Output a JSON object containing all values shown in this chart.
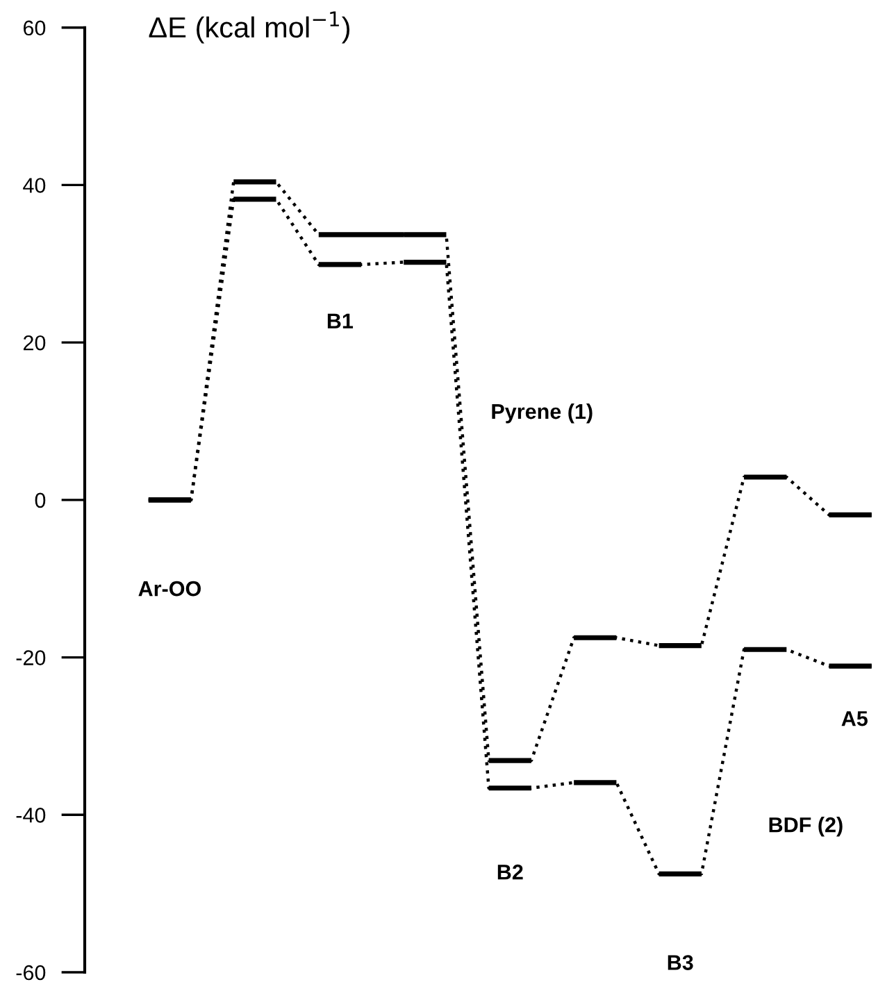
{
  "chart_data": {
    "type": "line",
    "ylabel": "ΔE (kcal mol$^{−1}$)",
    "categories": [
      null,
      null,
      null,
      null,
      null,
      null,
      null,
      null,
      null,
      null,
      null,
      null,
      null,
      null,
      null,
      null,
      null,
      null
    ],
    "series": [
      {
        "name": "Pyrene (1)",
        "color": "#000000",
        "values": [
          0,
          0,
          40.4,
          40.4,
          33.7,
          33.7,
          33.7,
          33.7,
          -33.1,
          -33.1,
          -17.5,
          -17.5,
          -18.5,
          -18.5,
          2.9,
          2.9,
          -1.9,
          -1.9
        ]
      },
      {
        "name": "BDF (2)",
        "color": "#000000",
        "values": [
          0,
          0,
          38.2,
          38.2,
          29.9,
          29.9,
          30.2,
          30.2,
          -36.6,
          -36.6,
          -35.9,
          -35.9,
          -47.5,
          -47.5,
          -19.0,
          -19.0,
          -21.1,
          -21.1
        ]
      }
    ],
    "ylim": [
      -60,
      60
    ],
    "yticks": [
      -60,
      -40,
      -20,
      0,
      20,
      40,
      60
    ],
    "line_style": "dotted",
    "grid": false,
    "legend": false,
    "tick_labels": "y",
    "annotations": [
      "Ar-OO",
      "B1",
      "B2",
      "B3",
      "A5"
    ]
  }
}
